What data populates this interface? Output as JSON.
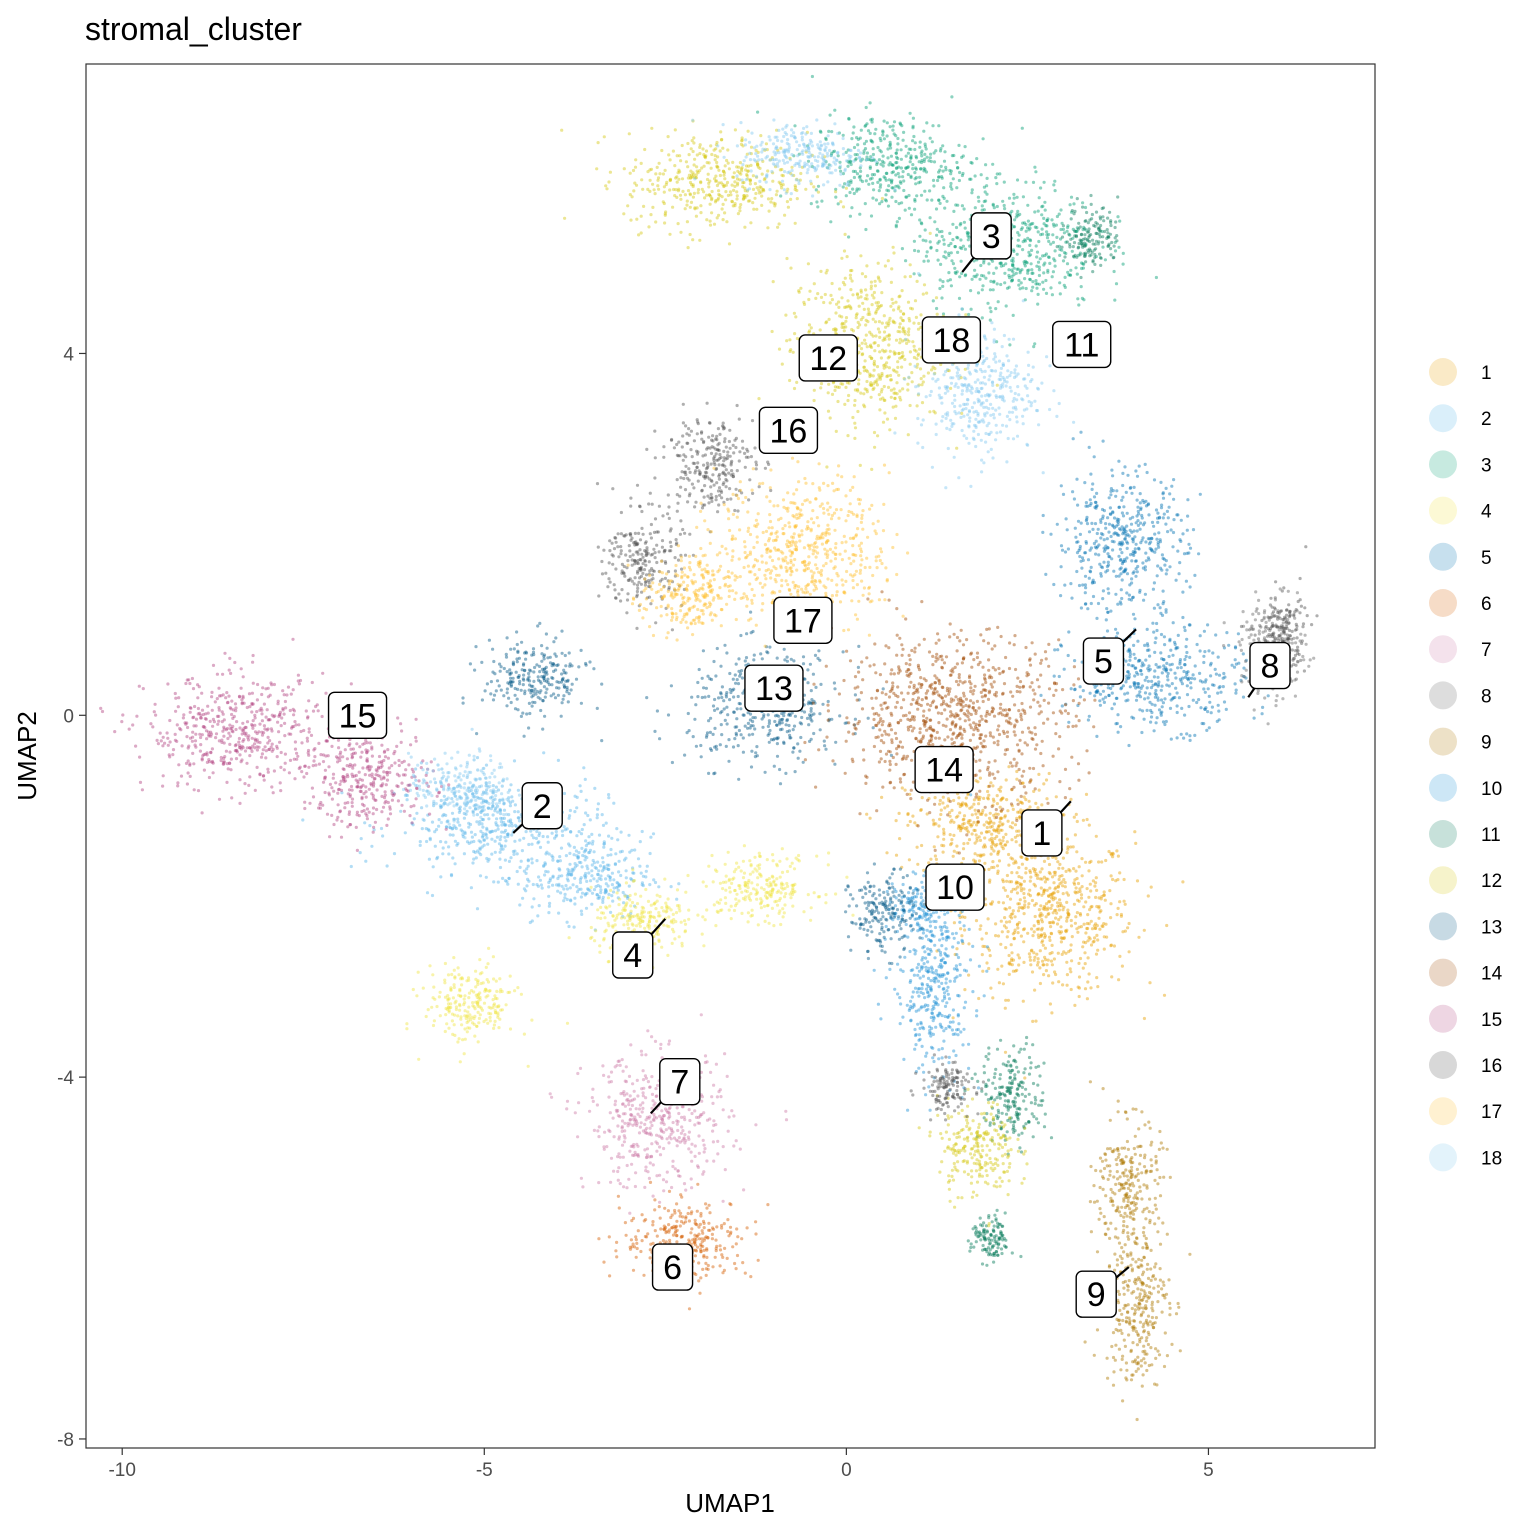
{
  "chart_data": {
    "type": "scatter",
    "title": "stromal_cluster",
    "xlabel": "UMAP1",
    "ylabel": "UMAP2",
    "xlim": [
      -10.5,
      7.3
    ],
    "ylim": [
      -8.1,
      7.2
    ],
    "x_ticks": [
      -10,
      -5,
      0,
      5
    ],
    "x_tick_labels": [
      "-10",
      "-5",
      "0",
      "5"
    ],
    "y_ticks": [
      -8,
      -4,
      0,
      4
    ],
    "y_tick_labels": [
      "-8",
      "-4",
      "0",
      "4"
    ],
    "grid": false,
    "legend_position": "right",
    "series": [
      {
        "label": "1",
        "color": "#E69F00",
        "label_pos": [
          2.7,
          -1.3
        ],
        "pointer_to": [
          3.1,
          -0.95
        ],
        "regions": [
          [
            2.8,
            -2.2,
            1.3,
            1.0
          ],
          [
            1.9,
            -1.2,
            1.2,
            0.6
          ]
        ]
      },
      {
        "label": "2",
        "color": "#56B4E9",
        "label_pos": [
          -4.2,
          -1.0
        ],
        "pointer_to": [
          -4.6,
          -1.3
        ],
        "regions": [
          [
            -4.8,
            -1.2,
            1.6,
            0.6
          ],
          [
            -3.6,
            -1.8,
            1.0,
            0.5
          ]
        ]
      },
      {
        "label": "3",
        "color": "#009E73",
        "label_pos": [
          2.0,
          5.3
        ],
        "pointer_to": [
          1.6,
          4.9
        ],
        "regions": [
          [
            0.6,
            6.1,
            1.2,
            0.6
          ],
          [
            2.2,
            5.2,
            1.4,
            0.8
          ]
        ]
      },
      {
        "label": "4",
        "color": "#F0E442",
        "label_pos": [
          -2.95,
          -2.65
        ],
        "pointer_to": [
          -2.5,
          -2.25
        ],
        "regions": [
          [
            -2.8,
            -2.3,
            0.8,
            0.4
          ],
          [
            -1.2,
            -1.9,
            0.9,
            0.4
          ],
          [
            -5.2,
            -3.2,
            0.7,
            0.5
          ]
        ]
      },
      {
        "label": "5",
        "color": "#0072B2",
        "label_pos": [
          3.55,
          0.6
        ],
        "pointer_to": [
          4.0,
          0.95
        ],
        "regions": [
          [
            4.3,
            0.4,
            1.4,
            0.6
          ],
          [
            3.8,
            1.9,
            1.0,
            0.9
          ]
        ]
      },
      {
        "label": "6",
        "color": "#D55E00",
        "label_pos": [
          -2.4,
          -6.1
        ],
        "pointer_to": [
          -2.4,
          -6.1
        ],
        "regions": [
          [
            -2.2,
            -5.8,
            1.0,
            0.5
          ]
        ]
      },
      {
        "label": "7",
        "color": "#CC79A7",
        "label_pos": [
          -2.3,
          -4.05
        ],
        "pointer_to": [
          -2.7,
          -4.4
        ],
        "regions": [
          [
            -2.6,
            -4.5,
            1.1,
            0.8
          ]
        ]
      },
      {
        "label": "8",
        "color": "#666666",
        "label_pos": [
          5.85,
          0.55
        ],
        "pointer_to": [
          5.55,
          0.2
        ],
        "regions": [
          [
            5.9,
            0.7,
            0.5,
            0.6
          ]
        ]
      },
      {
        "label": "9",
        "color": "#AD7700",
        "label_pos": [
          3.45,
          -6.4
        ],
        "pointer_to": [
          3.9,
          -6.1
        ],
        "regions": [
          [
            4.0,
            -6.5,
            0.5,
            1.0
          ],
          [
            3.9,
            -5.2,
            0.5,
            0.8
          ]
        ]
      },
      {
        "label": "10",
        "color": "#1C91D4",
        "label_pos": [
          1.5,
          -1.9
        ],
        "pointer_to": [
          1.5,
          -1.9
        ],
        "regions": [
          [
            1.2,
            -3.0,
            0.6,
            1.1
          ],
          [
            1.0,
            -2.1,
            0.4,
            0.3
          ]
        ]
      },
      {
        "label": "11",
        "color": "#007756",
        "label_pos": [
          3.25,
          4.1
        ],
        "pointer_to": [
          3.25,
          4.1
        ],
        "regions": [
          [
            3.4,
            5.3,
            0.4,
            0.4
          ],
          [
            2.3,
            -4.2,
            0.5,
            0.6
          ],
          [
            2.0,
            -5.8,
            0.3,
            0.3
          ]
        ]
      },
      {
        "label": "12",
        "color": "#D5C711",
        "label_pos": [
          -0.25,
          3.95
        ],
        "pointer_to": [
          -0.25,
          3.95
        ],
        "regions": [
          [
            -1.8,
            5.9,
            1.4,
            0.6
          ],
          [
            0.3,
            4.1,
            1.2,
            1.0
          ],
          [
            1.8,
            -4.8,
            0.6,
            0.6
          ]
        ]
      },
      {
        "label": "13",
        "color": "#005685",
        "label_pos": [
          -1.0,
          0.3
        ],
        "pointer_to": [
          -1.0,
          0.3
        ],
        "regions": [
          [
            -1.1,
            0.1,
            1.2,
            0.7
          ],
          [
            -4.3,
            0.4,
            0.8,
            0.5
          ],
          [
            0.5,
            -2.2,
            0.5,
            0.5
          ]
        ]
      },
      {
        "label": "14",
        "color": "#A04700",
        "label_pos": [
          1.35,
          -0.6
        ],
        "pointer_to": [
          1.35,
          -0.6
        ],
        "regions": [
          [
            1.5,
            0.0,
            1.8,
            1.0
          ]
        ]
      },
      {
        "label": "15",
        "color": "#B14380",
        "label_pos": [
          -6.75,
          0.0
        ],
        "pointer_to": [
          -6.75,
          0.0
        ],
        "regions": [
          [
            -8.4,
            -0.2,
            1.4,
            0.7
          ],
          [
            -6.6,
            -0.7,
            1.0,
            0.6
          ]
        ]
      },
      {
        "label": "16",
        "color": "#4D4D4D",
        "label_pos": [
          -0.8,
          3.15
        ],
        "pointer_to": [
          -0.8,
          3.15
        ],
        "regions": [
          [
            -1.9,
            2.8,
            0.7,
            0.6
          ],
          [
            -2.8,
            1.7,
            0.6,
            0.6
          ],
          [
            6.0,
            0.9,
            0.4,
            0.5
          ],
          [
            1.4,
            -4.1,
            0.4,
            0.3
          ]
        ]
      },
      {
        "label": "17",
        "color": "#FFBE2D",
        "label_pos": [
          -0.6,
          1.05
        ],
        "pointer_to": [
          -0.6,
          1.05
        ],
        "regions": [
          [
            -0.6,
            1.8,
            1.3,
            0.9
          ],
          [
            -2.2,
            1.3,
            0.7,
            0.5
          ]
        ]
      },
      {
        "label": "18",
        "color": "#80C7EF",
        "label_pos": [
          1.45,
          4.15
        ],
        "pointer_to": [
          1.45,
          4.15
        ],
        "regions": [
          [
            -0.6,
            6.2,
            1.0,
            0.4
          ],
          [
            1.8,
            3.6,
            0.9,
            0.8
          ],
          [
            -5.3,
            -0.8,
            0.8,
            0.4
          ]
        ]
      }
    ]
  }
}
